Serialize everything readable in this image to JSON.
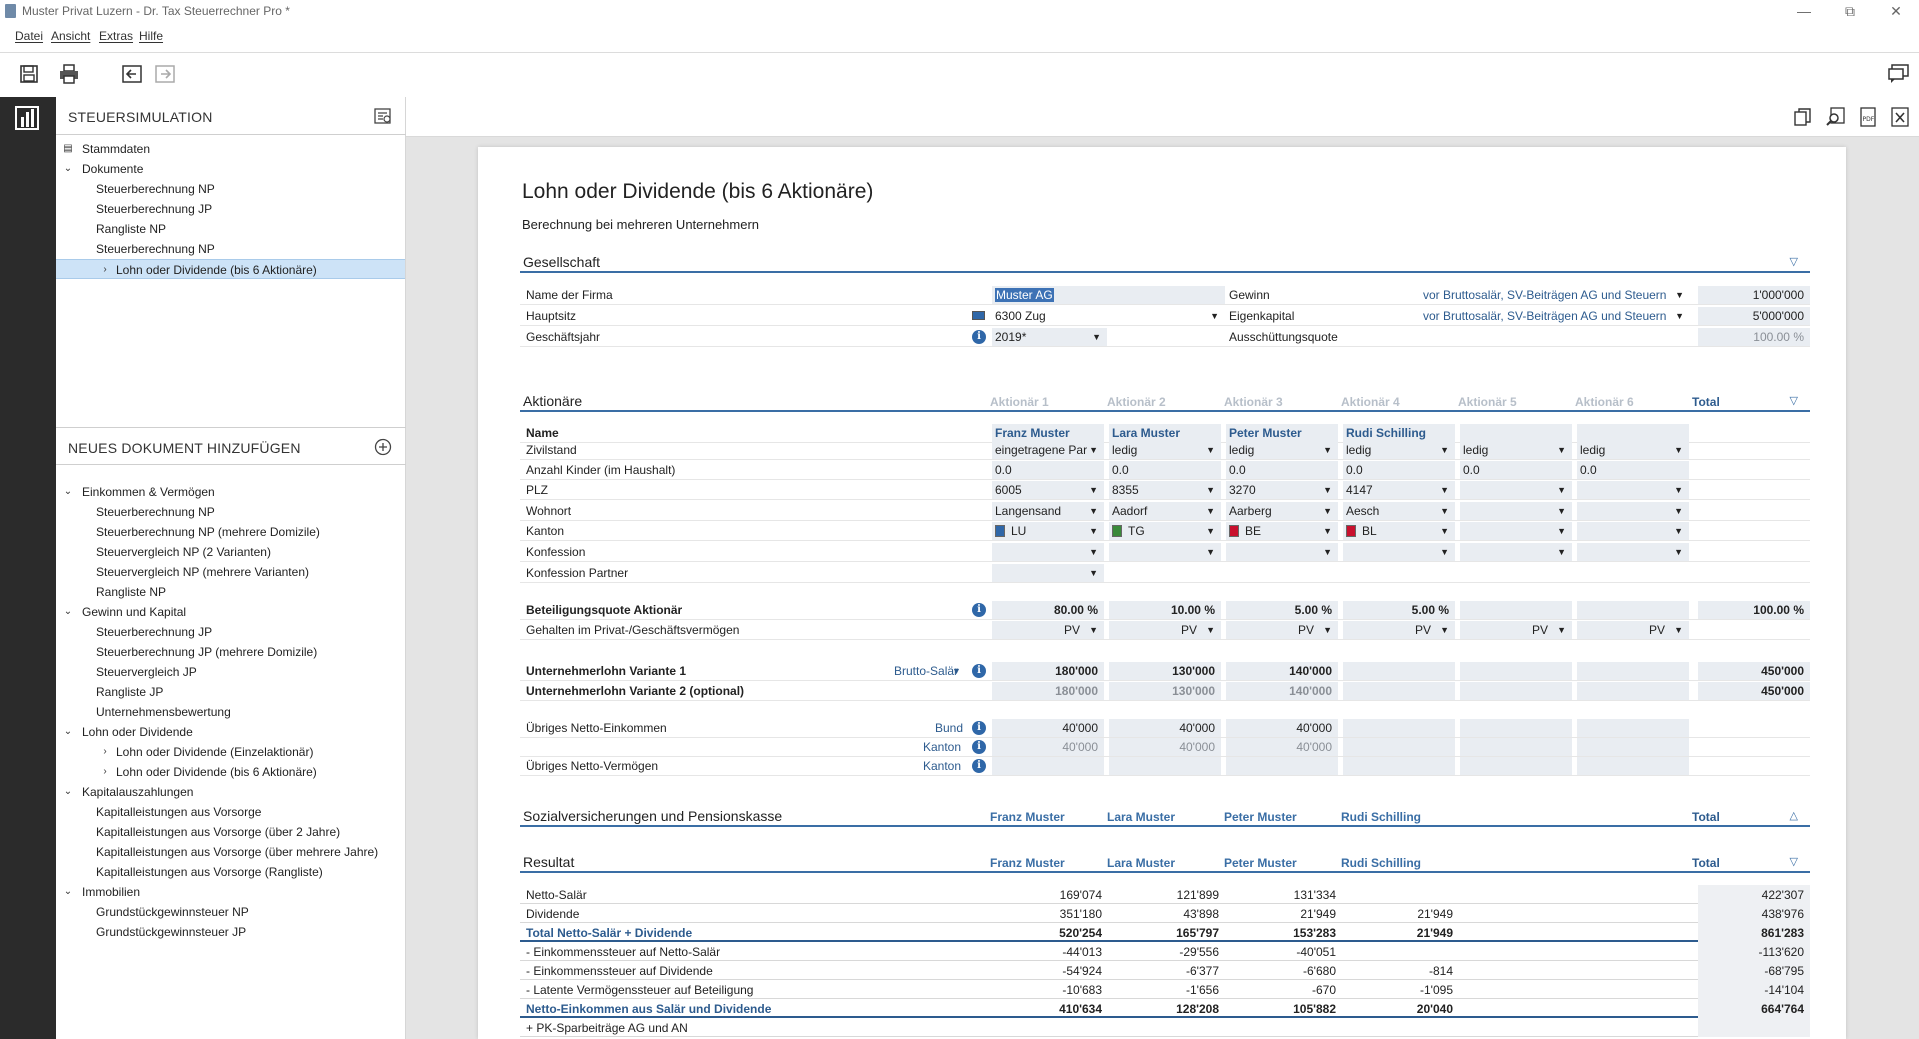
{
  "window": {
    "title": "Muster Privat Luzern - Dr. Tax Steuerrechner Pro *"
  },
  "menu": [
    "Datei",
    "Ansicht",
    "Extras",
    "Hilfe"
  ],
  "sidebar": {
    "header": "STEUERSIMULATION",
    "tree": [
      {
        "label": "Stammdaten"
      },
      {
        "label": "Dokumente"
      },
      {
        "label": "Steuerberechnung NP"
      },
      {
        "label": "Steuerberechnung JP"
      },
      {
        "label": "Rangliste NP"
      },
      {
        "label": "Steuerberechnung NP"
      },
      {
        "label": "Lohn oder Dividende (bis 6 Aktionäre)"
      }
    ],
    "new_header": "NEUES DOKUMENT HINZUFÜGEN",
    "new_tree": [
      {
        "label": "Einkommen & Vermögen"
      },
      {
        "label": "Steuerberechnung NP"
      },
      {
        "label": "Steuerberechnung NP (mehrere Domizile)"
      },
      {
        "label": "Steuervergleich NP (2 Varianten)"
      },
      {
        "label": "Steuervergleich NP (mehrere Varianten)"
      },
      {
        "label": "Rangliste NP"
      },
      {
        "label": "Gewinn und Kapital"
      },
      {
        "label": "Steuerberechnung JP"
      },
      {
        "label": "Steuerberechnung JP (mehrere Domizile)"
      },
      {
        "label": "Steuervergleich JP"
      },
      {
        "label": "Rangliste JP"
      },
      {
        "label": "Unternehmensbewertung"
      },
      {
        "label": "Lohn oder Dividende"
      },
      {
        "label": "Lohn oder Dividende (Einzelaktionär)"
      },
      {
        "label": "Lohn oder Dividende (bis 6 Aktionäre)"
      },
      {
        "label": "Kapitalauszahlungen"
      },
      {
        "label": "Kapitalleistungen aus Vorsorge"
      },
      {
        "label": "Kapitalleistungen aus Vorsorge (über 2 Jahre)"
      },
      {
        "label": "Kapitalleistungen aus Vorsorge (über mehrere Jahre)"
      },
      {
        "label": "Kapitalleistungen aus Vorsorge (Rangliste)"
      },
      {
        "label": "Immobilien"
      },
      {
        "label": "Grundstückgewinnsteuer NP"
      },
      {
        "label": "Grundstückgewinnsteuer JP"
      }
    ]
  },
  "doc": {
    "title": "Lohn oder Dividende (bis 6 Aktionäre)",
    "subtitle": "Berechnung bei mehreren Unternehmern",
    "gesellschaft": {
      "header": "Gesellschaft",
      "firma_label": "Name der Firma",
      "firma_value": "Muster AG",
      "sitz_label": "Hauptsitz",
      "sitz_value": "6300 Zug",
      "jahr_label": "Geschäftsjahr",
      "jahr_value": "2019*",
      "gewinn_label": "Gewinn",
      "gewinn_basis": "vor Bruttosalär, SV-Beiträgen AG und Steuern",
      "gewinn_value": "1'000'000",
      "eigenkapital_label": "Eigenkapital",
      "eigenkapital_basis": "vor Bruttosalär, SV-Beiträgen AG und Steuern",
      "eigenkapital_value": "5'000'000",
      "quote_label": "Ausschüttungsquote",
      "quote_value": "100.00 %"
    },
    "aktionaere": {
      "header": "Aktionäre",
      "cols": [
        "Aktionär 1",
        "Aktionär 2",
        "Aktionär 3",
        "Aktionär 4",
        "Aktionär 5",
        "Aktionär 6"
      ],
      "total": "Total",
      "labels": {
        "name": "Name",
        "zivil": "Zivilstand",
        "kinder": "Anzahl Kinder (im Haushalt)",
        "plz": "PLZ",
        "wohnort": "Wohnort",
        "kanton": "Kanton",
        "konf": "Konfession",
        "konfp": "Konfession Partner",
        "quote": "Beteiligungsquote Aktionär",
        "gehalten": "Gehalten im Privat-/Geschäftsvermögen",
        "lohn1": "Unternehmerlohn Variante 1",
        "lohn1_type": "Brutto-Salär",
        "lohn2": "Unternehmerlohn Variante 2 (optional)",
        "uebrig_ek": "Übriges Netto-Einkommen",
        "bund": "Bund",
        "kanton_lbl": "Kanton",
        "uebrig_vm": "Übriges Netto-Vermögen"
      },
      "names": [
        "Franz Muster",
        "Lara Muster",
        "Peter Muster",
        "Rudi Schilling",
        "",
        ""
      ],
      "zivil": [
        "eingetragene Par",
        "ledig",
        "ledig",
        "ledig",
        "ledig",
        "ledig"
      ],
      "kinder": [
        "0.0",
        "0.0",
        "0.0",
        "0.0",
        "0.0",
        "0.0"
      ],
      "plz": [
        "6005",
        "8355",
        "3270",
        "4147",
        "",
        ""
      ],
      "wohnort": [
        "Langensand",
        "Aadorf",
        "Aarberg",
        "Aesch",
        "",
        ""
      ],
      "kanton": [
        "LU",
        "TG",
        "BE",
        "BL",
        "",
        ""
      ],
      "quote": [
        "80.00 %",
        "10.00 %",
        "5.00 %",
        "5.00 %",
        "",
        ""
      ],
      "quote_total": "100.00 %",
      "gehalten": [
        "PV",
        "PV",
        "PV",
        "PV",
        "PV",
        "PV"
      ],
      "lohn1": [
        "180'000",
        "130'000",
        "140'000",
        "",
        "",
        ""
      ],
      "lohn1_total": "450'000",
      "lohn2": [
        "180'000",
        "130'000",
        "140'000",
        "",
        "",
        ""
      ],
      "lohn2_total": "450'000",
      "ek_bund": [
        "40'000",
        "40'000",
        "40'000",
        "",
        "",
        ""
      ],
      "ek_kanton": [
        "40'000",
        "40'000",
        "40'000",
        "",
        "",
        ""
      ]
    },
    "sozial": {
      "header": "Sozialversicherungen und Pensionskasse",
      "cols": [
        "Franz Muster",
        "Lara Muster",
        "Peter Muster",
        "Rudi Schilling"
      ],
      "total": "Total"
    },
    "resultat": {
      "header": "Resultat",
      "cols": [
        "Franz Muster",
        "Lara Muster",
        "Peter Muster",
        "Rudi Schilling"
      ],
      "total": "Total",
      "rows": [
        {
          "label": "Netto-Salär",
          "v": [
            "169'074",
            "121'899",
            "131'334",
            ""
          ],
          "t": "422'307",
          "style": ""
        },
        {
          "label": "Dividende",
          "v": [
            "351'180",
            "43'898",
            "21'949",
            "21'949"
          ],
          "t": "438'976",
          "style": ""
        },
        {
          "label": "Total Netto-Salär + Dividende",
          "v": [
            "520'254",
            "165'797",
            "153'283",
            "21'949"
          ],
          "t": "861'283",
          "style": "total"
        },
        {
          "label": "- Einkommenssteuer auf Netto-Salär",
          "v": [
            "-44'013",
            "-29'556",
            "-40'051",
            ""
          ],
          "t": "-113'620",
          "style": ""
        },
        {
          "label": "- Einkommenssteuer auf Dividende",
          "v": [
            "-54'924",
            "-6'377",
            "-6'680",
            "-814"
          ],
          "t": "-68'795",
          "style": ""
        },
        {
          "label": "- Latente Vermögenssteuer auf Beteiligung",
          "v": [
            "-10'683",
            "-1'656",
            "-670",
            "-1'095"
          ],
          "t": "-14'104",
          "style": ""
        },
        {
          "label": "Netto-Einkommen aus Salär und Dividende",
          "v": [
            "410'634",
            "128'208",
            "105'882",
            "20'040"
          ],
          "t": "664'764",
          "style": "total"
        },
        {
          "label": "+ PK-Sparbeiträge AG und AN",
          "v": [
            "",
            "",
            "",
            ""
          ],
          "t": "",
          "style": ""
        }
      ]
    }
  }
}
